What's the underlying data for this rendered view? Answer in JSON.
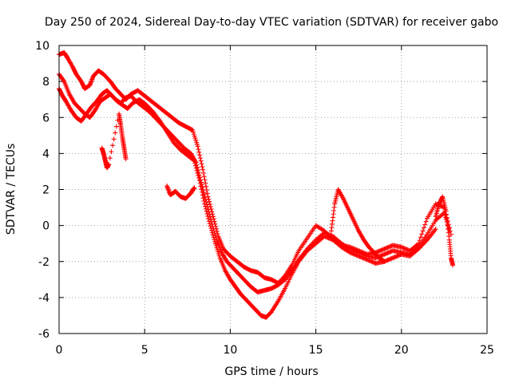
{
  "chart_data": {
    "type": "scatter",
    "title": "Day 250 of 2024, Sidereal Day-to-day VTEC variation (SDTVAR) for receiver gabo",
    "xlabel": "GPS time / hours",
    "ylabel": "SDTVAR / TECUs",
    "xlim": [
      0,
      25
    ],
    "ylim": [
      -6,
      10
    ],
    "xticks": [
      "0",
      "5",
      "10",
      "15",
      "20",
      "25"
    ],
    "yticks": [
      "-6",
      "-4",
      "-2",
      "0",
      "2",
      "4",
      "6",
      "8",
      "10"
    ],
    "grid": true,
    "marker": "+",
    "color": "#ff0000",
    "series": [
      {
        "x": [
          0.0,
          0.3,
          0.5,
          0.8,
          1.0,
          1.3,
          1.5,
          1.8,
          2.0,
          2.3,
          2.6,
          3.0,
          3.3,
          3.6,
          3.9,
          4.2,
          4.6,
          5.0,
          5.4,
          5.8,
          6.2,
          6.6,
          7.0,
          7.4,
          7.8,
          8.1,
          8.4,
          8.7,
          9.0,
          9.3,
          9.6,
          10.0,
          10.4,
          10.8,
          11.2,
          11.6,
          12.0,
          12.4,
          12.8,
          13.2,
          13.6,
          14.0,
          14.5,
          15.0,
          15.5,
          16.0,
          16.5,
          17.0,
          17.5,
          18.0,
          18.5,
          19.0,
          19.5,
          20.0,
          20.5,
          21.0,
          21.5,
          22.0,
          22.5,
          22.9
        ],
        "y": [
          9.5,
          9.6,
          9.3,
          8.8,
          8.4,
          8.0,
          7.6,
          7.8,
          8.3,
          8.6,
          8.4,
          8.0,
          7.6,
          7.3,
          7.0,
          7.3,
          7.5,
          7.2,
          6.9,
          6.6,
          6.3,
          6.0,
          5.7,
          5.5,
          5.3,
          4.4,
          3.1,
          1.6,
          0.5,
          -0.6,
          -1.3,
          -1.7,
          -2.0,
          -2.3,
          -2.5,
          -2.6,
          -2.9,
          -3.0,
          -3.2,
          -2.8,
          -2.2,
          -1.4,
          -0.7,
          0.0,
          -0.3,
          -0.8,
          -1.1,
          -1.2,
          -1.4,
          -1.6,
          -1.5,
          -1.3,
          -1.1,
          -1.2,
          -1.4,
          -1.0,
          0.4,
          1.2,
          1.0,
          -0.5
        ]
      },
      {
        "x": [
          0.0,
          0.3,
          0.6,
          0.9,
          1.2,
          1.5,
          1.8,
          2.1,
          2.4,
          2.7,
          3.0,
          3.3,
          3.6,
          3.9,
          4.2,
          4.5,
          4.9,
          5.3,
          5.7,
          6.1,
          6.5,
          6.9,
          7.3,
          7.7,
          8.0,
          8.3,
          8.6,
          8.9,
          9.2,
          9.5,
          9.8,
          10.1,
          10.4,
          10.8,
          11.2,
          11.6,
          12.0,
          12.4,
          12.8,
          13.2,
          13.6,
          14.0,
          14.5,
          15.0,
          15.5,
          16.0,
          16.5,
          17.0,
          17.5,
          18.0,
          18.5,
          19.0,
          19.5,
          20.0,
          20.5,
          21.0,
          21.5,
          22.0,
          22.5,
          22.8
        ],
        "y": [
          8.4,
          8.0,
          7.3,
          6.8,
          6.5,
          6.2,
          6.0,
          6.4,
          6.9,
          7.1,
          7.3,
          7.0,
          6.8,
          7.1,
          7.2,
          6.9,
          6.6,
          6.3,
          5.9,
          5.5,
          5.1,
          4.7,
          4.3,
          4.0,
          3.5,
          2.4,
          1.3,
          0.2,
          -0.8,
          -1.5,
          -2.0,
          -2.3,
          -2.6,
          -3.0,
          -3.4,
          -3.7,
          -3.6,
          -3.5,
          -3.3,
          -3.0,
          -2.5,
          -1.9,
          -1.3,
          -0.8,
          -0.4,
          -0.6,
          -1.0,
          -1.3,
          -1.5,
          -1.7,
          -1.8,
          -1.6,
          -1.4,
          -1.5,
          -1.6,
          -1.2,
          -0.5,
          0.3,
          0.7,
          -0.3
        ]
      },
      {
        "x": [
          0.0,
          0.2,
          0.4,
          0.7,
          1.0,
          1.3,
          1.6,
          1.9,
          2.2,
          2.5,
          2.8,
          3.1,
          3.4,
          3.7,
          4.0,
          4.3,
          4.7,
          5.1,
          5.5,
          5.9,
          6.3,
          6.7,
          7.1,
          7.5,
          7.9,
          8.2,
          8.5,
          8.8,
          9.1,
          9.4,
          9.7,
          10.0,
          10.3,
          10.6,
          10.9,
          11.2,
          11.5,
          11.8,
          12.1,
          12.4,
          12.8,
          13.2,
          13.6,
          14.0,
          14.5,
          15.0,
          15.5,
          16.0,
          16.5,
          17.0,
          17.5,
          18.0,
          18.5,
          19.0,
          19.5,
          20.0,
          20.5,
          21.0,
          21.5,
          22.0
        ],
        "y": [
          7.6,
          7.2,
          6.9,
          6.4,
          6.0,
          5.8,
          6.2,
          6.6,
          6.9,
          7.3,
          7.5,
          7.2,
          6.9,
          6.7,
          6.5,
          6.8,
          7.0,
          6.7,
          6.3,
          5.8,
          5.2,
          4.6,
          4.2,
          3.9,
          3.6,
          2.5,
          1.2,
          0.1,
          -0.9,
          -1.8,
          -2.5,
          -3.0,
          -3.4,
          -3.8,
          -4.1,
          -4.4,
          -4.7,
          -5.0,
          -5.1,
          -4.8,
          -4.2,
          -3.5,
          -2.7,
          -2.0,
          -1.4,
          -1.0,
          -0.6,
          -0.8,
          -1.2,
          -1.5,
          -1.7,
          -1.9,
          -2.1,
          -2.0,
          -1.8,
          -1.6,
          -1.7,
          -1.3,
          -0.8,
          -0.2
        ]
      },
      {
        "x": [
          15.9,
          16.1,
          16.3,
          16.6,
          16.9,
          17.2,
          17.5,
          17.8,
          18.1,
          18.4,
          18.7,
          19.0
        ],
        "y": [
          -0.3,
          1.2,
          2.0,
          1.5,
          0.9,
          0.3,
          -0.3,
          -0.8,
          -1.2,
          -1.5,
          -1.8,
          -2.0
        ]
      },
      {
        "x": [
          6.3,
          6.5,
          6.8,
          7.1,
          7.4,
          7.7,
          7.9
        ],
        "y": [
          2.2,
          1.7,
          1.9,
          1.6,
          1.5,
          1.8,
          2.1
        ]
      },
      {
        "x": [
          22.0,
          22.2,
          22.4,
          22.6,
          22.8,
          22.9,
          23.0
        ],
        "y": [
          0.5,
          1.2,
          1.6,
          0.8,
          -0.8,
          -1.8,
          -2.2
        ]
      },
      {
        "x": [
          2.5,
          2.6,
          2.7,
          2.8,
          2.9,
          3.5,
          3.6,
          3.7,
          3.8,
          3.9
        ],
        "y": [
          4.3,
          4.0,
          3.6,
          3.2,
          3.4,
          6.2,
          5.6,
          4.9,
          4.3,
          3.7
        ]
      }
    ]
  }
}
